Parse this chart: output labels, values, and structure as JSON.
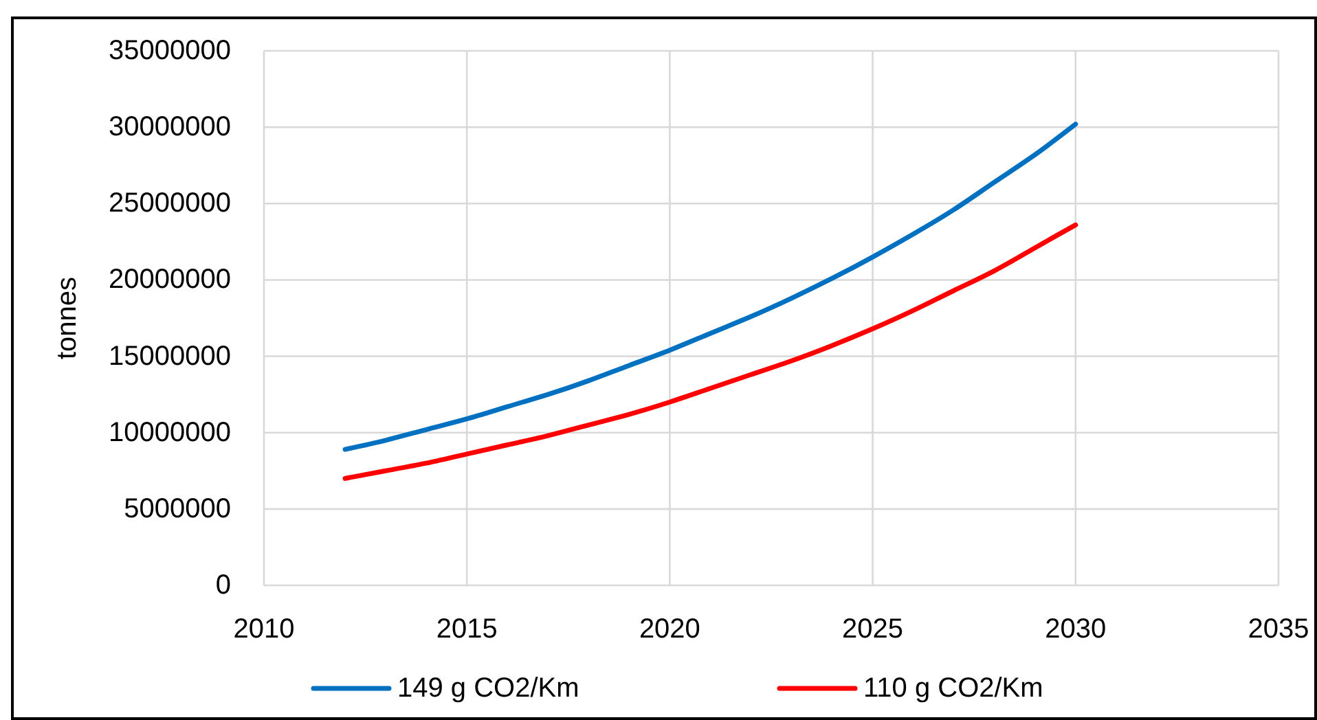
{
  "chart_data": {
    "type": "line",
    "ylabel": "tonnes",
    "x": [
      2012,
      2013,
      2014,
      2015,
      2016,
      2017,
      2018,
      2019,
      2020,
      2021,
      2022,
      2023,
      2024,
      2025,
      2026,
      2027,
      2028,
      2029,
      2030
    ],
    "series": [
      {
        "name": "149 g CO2/Km",
        "color": "#0070c0",
        "values": [
          8900000,
          9500000,
          10200000,
          10900000,
          11700000,
          12500000,
          13400000,
          14400000,
          15400000,
          16500000,
          17600000,
          18800000,
          20100000,
          21500000,
          23000000,
          24600000,
          26400000,
          28200000,
          30200000
        ]
      },
      {
        "name": "110 g CO2/Km",
        "color": "#ff0000",
        "values": [
          7000000,
          7500000,
          8000000,
          8600000,
          9200000,
          9800000,
          10500000,
          11200000,
          12000000,
          12900000,
          13800000,
          14700000,
          15700000,
          16800000,
          18000000,
          19300000,
          20600000,
          22100000,
          23600000
        ]
      }
    ],
    "xlim": [
      2010,
      2035
    ],
    "xticks": [
      2010,
      2015,
      2020,
      2025,
      2030,
      2035
    ],
    "ylim": [
      0,
      35000000
    ],
    "yticks": [
      0,
      5000000,
      10000000,
      15000000,
      20000000,
      25000000,
      30000000,
      35000000
    ],
    "grid": true,
    "legend": "bottom",
    "line_style": "solid"
  }
}
